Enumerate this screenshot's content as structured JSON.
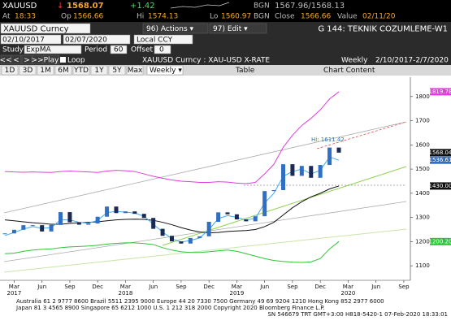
{
  "header": {
    "ticker": "XAUUSD",
    "arrow": "↓",
    "last": "1568.07",
    "change": "+1.42",
    "bgn": "BGN",
    "bid_ask": "1567.96/1568.13",
    "at_label": "At",
    "at": "18:33",
    "op_label": "Op",
    "op": "1566.66",
    "hi_label": "Hi",
    "hi": "1574.13",
    "lo_label": "Lo",
    "lo": "1560.97",
    "close_bgn": "BGN",
    "close_label": "Close",
    "close": "1566.66",
    "value_label": "Value",
    "value": "02/11/20"
  },
  "toolbar": {
    "security": "XAUUSD Curncy",
    "actions": "96) Actions ▾",
    "edit": "97) Edit ▾",
    "page_title": "G 144: TEKNIK COZUMLEME-W1",
    "date_from": "02/10/2017",
    "date_to": "02/07/2020",
    "currency": "Local CCY",
    "study_label": "Study",
    "study": "ExpMA",
    "period_label": "Period",
    "period": "60",
    "offset_label": "Offset",
    "offset": "0",
    "nav": [
      "<<",
      "<",
      ">",
      ">>"
    ],
    "play": "Play",
    "loop": "Loop",
    "chart_title": "XAUUSD Curncy : XAU-USD X-RATE",
    "frequency": "Weekly",
    "range": "2/10/2017-2/7/2020",
    "periods": [
      "1D",
      "3D",
      "1M",
      "6M",
      "YTD",
      "1Y",
      "5Y",
      "Max"
    ],
    "frequency_menu": "Weekly ▾",
    "table": "Table",
    "chart_content": "Chart Content"
  },
  "chart_data": {
    "type": "candlestick",
    "ylim": [
      1040,
      1880
    ],
    "yticks": [
      1100,
      1200,
      1300,
      1400,
      1500,
      1600,
      1700,
      1800
    ],
    "xlabels": [
      "Mar",
      "Jun",
      "Sep",
      "Dec",
      "Mar",
      "Jun",
      "Sep",
      "Dec",
      "Mar",
      "Jun",
      "Sep",
      "Dec",
      "Mar",
      "Jun",
      "Sep"
    ],
    "years": [
      "2017",
      "2018",
      "2019",
      "2020"
    ],
    "values": [
      1234,
      1249,
      1268,
      1268,
      1242,
      1269,
      1322,
      1280,
      1270,
      1275,
      1303,
      1345,
      1318,
      1325,
      1315,
      1298,
      1253,
      1224,
      1201,
      1192,
      1215,
      1222,
      1282,
      1321,
      1313,
      1292,
      1284,
      1305,
      1409,
      1413,
      1520,
      1472,
      1513,
      1464,
      1517,
      1589,
      1568
    ],
    "up_color": "#2f6fc4",
    "down_color": "#1a2a55",
    "series": [
      {
        "color": "#e23ce0",
        "values": [
          1490,
          1488,
          1487,
          1488,
          1487,
          1486,
          1490,
          1492,
          1490,
          1488,
          1486,
          1492,
          1495,
          1493,
          1490,
          1480,
          1470,
          1462,
          1455,
          1450,
          1448,
          1445,
          1445,
          1448,
          1446,
          1442,
          1440,
          1445,
          1480,
          1520,
          1590,
          1640,
          1680,
          1710,
          1745,
          1790,
          1819.78
        ]
      },
      {
        "color": "#2ec43a",
        "values": [
          1150,
          1152,
          1160,
          1165,
          1168,
          1170,
          1175,
          1178,
          1180,
          1182,
          1185,
          1190,
          1193,
          1195,
          1195,
          1192,
          1188,
          1175,
          1165,
          1158,
          1155,
          1155,
          1158,
          1162,
          1165,
          1160,
          1150,
          1140,
          1130,
          1122,
          1118,
          1115,
          1114,
          1116,
          1130,
          1170,
          1200.2
        ]
      },
      {
        "color": "#111111",
        "values": [
          1290,
          1286,
          1282,
          1278,
          1275,
          1272,
          1272,
          1275,
          1278,
          1280,
          1282,
          1286,
          1290,
          1292,
          1293,
          1292,
          1288,
          1280,
          1270,
          1258,
          1248,
          1240,
          1236,
          1238,
          1242,
          1244,
          1246,
          1250,
          1262,
          1280,
          1310,
          1340,
          1365,
          1385,
          1400,
          1418,
          1430
        ]
      },
      {
        "color": "#3fa9f5",
        "values": [
          1225,
          1238,
          1252,
          1262,
          1255,
          1258,
          1290,
          1290,
          1280,
          1276,
          1288,
          1320,
          1325,
          1322,
          1318,
          1305,
          1272,
          1240,
          1212,
          1198,
          1205,
          1215,
          1250,
          1295,
          1308,
          1300,
          1290,
          1296,
          1360,
          1400,
          1470,
          1490,
          1500,
          1480,
          1495,
          1550,
          1536.61
        ]
      }
    ],
    "price_labels": [
      {
        "value": 1819.78,
        "label": "1819.78",
        "color": "#e23ce0"
      },
      {
        "value": 1568.04,
        "label": "1568.04",
        "color": "#111111"
      },
      {
        "value": 1536.61,
        "label": "1536.61",
        "color": "#2f6fc4"
      },
      {
        "value": 1430,
        "label": "1430.00",
        "color": "#111111"
      },
      {
        "value": 1200.2,
        "label": "1200.20",
        "color": "#2ec43a"
      }
    ],
    "annotation": "Hi: 1611.42"
  },
  "footer": {
    "line1": "Australia 61 2 9777 8600 Brazil 5511 2395 9000 Europe 44 20 7330 7500 Germany 49 69 9204 1210 Hong Kong 852 2977 6000",
    "line2": "Japan 81 3 4565 8900 Singapore 65 6212 1000 U.S. 1 212 318 2000 Copyright 2020 Bloomberg Finance L.P.",
    "line3": "SN 546679 TRT GMT+3:00 H818-5420-1 07-Feb-2020 18:33:01"
  }
}
